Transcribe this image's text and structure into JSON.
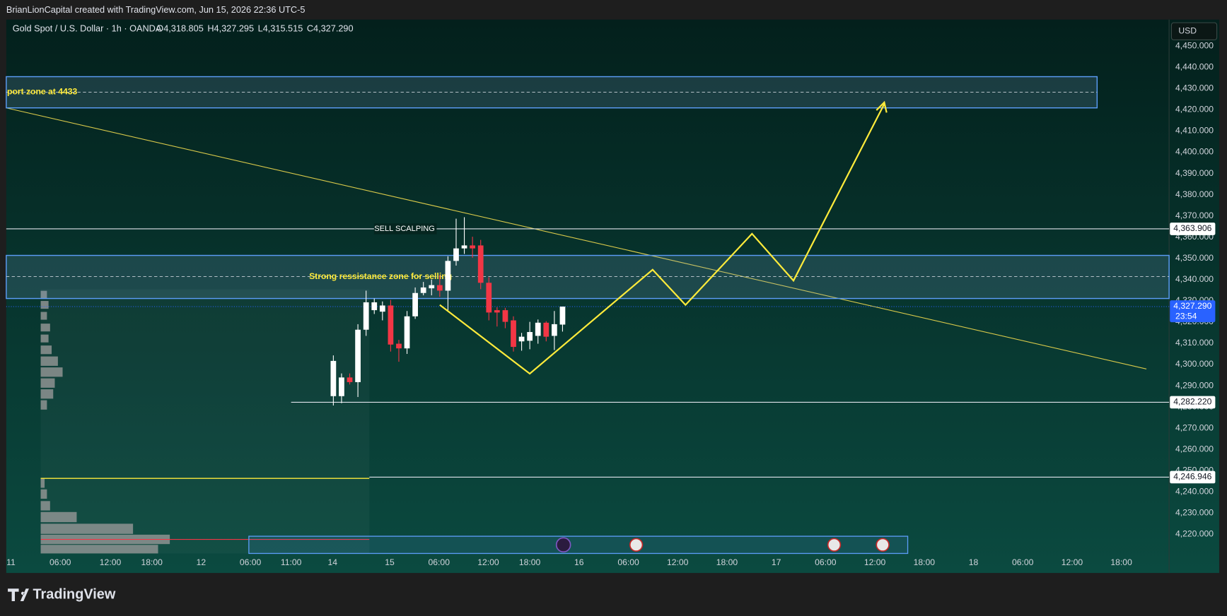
{
  "header": {
    "watermark": "BrianLionCapital created with TradingView.com, Jun 15, 2026 22:36 UTC-5"
  },
  "footer": {
    "brand": "TradingView"
  },
  "chart_data": {
    "type": "candlestick",
    "title": "Gold Spot / U.S. Dollar · 1h · OANDA",
    "ohlc_labels": [
      "O4,318.805",
      "H4,327.295",
      "L4,315.515",
      "C4,327.290"
    ],
    "currency": "USD",
    "categories": [
      null,
      null,
      null,
      null,
      null,
      null,
      null,
      null,
      null,
      null,
      null,
      null,
      null,
      null,
      null,
      null,
      null,
      null,
      null,
      null,
      null,
      null,
      null,
      null,
      null,
      null,
      null,
      null,
      null
    ],
    "open": [
      4285.1,
      4285.1,
      4293.9,
      4291.7,
      4316.4,
      4325.6,
      4324.9,
      4327.8,
      4309.8,
      4307.6,
      4322.7,
      4333.7,
      4335.9,
      4337.4,
      4334.8,
      4348.8,
      4354.7,
      4356.1,
      4356.1,
      4338.5,
      4325.6,
      4325.6,
      4320.8,
      4310.9,
      4311.2,
      4313.5,
      4319.7,
      4313.5,
      4318.805
    ],
    "high": [
      4304.3,
      4295.8,
      4295.8,
      4319.0,
      4334.8,
      4331.1,
      4329.7,
      4330.4,
      4311.6,
      4325.2,
      4336.3,
      4338.9,
      4340.0,
      4342.2,
      4351.0,
      4368.7,
      4369.4,
      4360.2,
      4358.7,
      4341.1,
      4327.0,
      4326.7,
      4322.7,
      4314.9,
      4320.1,
      4321.2,
      4320.4,
      4325.2,
      4327.295
    ],
    "low": [
      4280.7,
      4281.8,
      4290.6,
      4284.7,
      4313.5,
      4323.8,
      4320.8,
      4306.1,
      4301.3,
      4305.0,
      4321.5,
      4332.6,
      4332.6,
      4331.9,
      4325.6,
      4346.6,
      4352.1,
      4350.3,
      4335.5,
      4320.8,
      4317.9,
      4317.1,
      4306.1,
      4306.5,
      4307.2,
      4309.8,
      4310.9,
      4306.8,
      4315.515
    ],
    "close": [
      4301.7,
      4293.9,
      4291.7,
      4316.4,
      4329.3,
      4329.3,
      4327.8,
      4309.4,
      4307.6,
      4322.7,
      4333.7,
      4336.3,
      4337.4,
      4334.8,
      4348.8,
      4354.7,
      4356.1,
      4354.7,
      4338.5,
      4324.5,
      4324.5,
      4320.1,
      4308.3,
      4313.1,
      4315.3,
      4319.7,
      4313.1,
      4319.0,
      4327.29
    ],
    "up_color": "#ffffff",
    "down_color": "#f23645",
    "ylim": [
      4211,
      4462.5
    ],
    "yticks": [
      {
        "value": 4220,
        "label": "4,220.000"
      },
      {
        "value": 4230,
        "label": "4,230.000"
      },
      {
        "value": 4240,
        "label": "4,240.000"
      },
      {
        "value": 4250,
        "label": "4,250.000"
      },
      {
        "value": 4260,
        "label": "4,260.000"
      },
      {
        "value": 4270,
        "label": "4,270.000"
      },
      {
        "value": 4280,
        "label": "4,280.000"
      },
      {
        "value": 4290,
        "label": "4,290.000"
      },
      {
        "value": 4300,
        "label": "4,300.000"
      },
      {
        "value": 4310,
        "label": "4,310.000"
      },
      {
        "value": 4320,
        "label": "4,320.000"
      },
      {
        "value": 4330,
        "label": "4,330.000"
      },
      {
        "value": 4340,
        "label": "4,340.000"
      },
      {
        "value": 4350,
        "label": "4,350.000"
      },
      {
        "value": 4360,
        "label": "4,360.000"
      },
      {
        "value": 4370,
        "label": "4,370.000"
      },
      {
        "value": 4380,
        "label": "4,380.000"
      },
      {
        "value": 4390,
        "label": "4,390.000"
      },
      {
        "value": 4400,
        "label": "4,400.000"
      },
      {
        "value": 4410,
        "label": "4,410.000"
      },
      {
        "value": 4420,
        "label": "4,420.000"
      },
      {
        "value": 4430,
        "label": "4,430.000"
      },
      {
        "value": 4440,
        "label": "4,440.000"
      },
      {
        "value": 4450,
        "label": "4,450.000"
      }
    ],
    "x_labels": [
      "11",
      "06:00",
      "12:00",
      "18:00",
      "12",
      "06:00",
      "11:00",
      "14",
      "15",
      "06:00",
      "12:00",
      "18:00",
      "16",
      "06:00",
      "12:00",
      "18:00",
      "17",
      "06:00",
      "12:00",
      "18:00",
      "18",
      "06:00",
      "12:00",
      "18:00"
    ],
    "levels": [
      {
        "value": 4363.906,
        "label": "4,363.906",
        "text": "SELL SCALPING"
      },
      {
        "value": 4282.22,
        "label": "4,282.220"
      },
      {
        "value": 4246.946,
        "label": "4,246.946"
      }
    ],
    "zones": [
      {
        "top": 4351.4,
        "bottom": 4331.1,
        "mid": 4341.4,
        "text": "Strong ressistance zone for selling"
      },
      {
        "top": 4435.6,
        "bottom": 4420.9,
        "mid": 4428.3,
        "text": "port zone at 4433"
      }
    ],
    "last_price": {
      "value": 4327.29,
      "label": "4,327.290",
      "countdown": "23:54"
    }
  }
}
